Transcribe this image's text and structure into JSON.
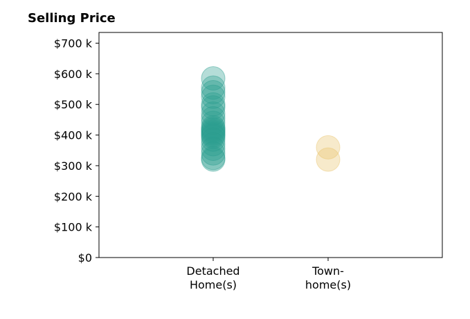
{
  "chart_data": {
    "type": "scatter",
    "title": "Selling Price",
    "categories": [
      "Detached\nHome(s)",
      "Town-\nhome(s)"
    ],
    "y_tick_labels": [
      "$0",
      "$100 k",
      "$200 k",
      "$300 k",
      "$400 k",
      "$500 k",
      "$600 k",
      "$700 k"
    ],
    "y_tick_values": [
      0,
      100000,
      200000,
      300000,
      400000,
      500000,
      600000,
      700000
    ],
    "ylim": [
      0,
      735000
    ],
    "series": [
      {
        "category": "Detached\nHome(s)",
        "color": "#2a9d8f",
        "values": [
          585000,
          555000,
          540000,
          525000,
          500000,
          490000,
          470000,
          455000,
          440000,
          425000,
          420000,
          415000,
          410000,
          405000,
          400000,
          395000,
          385000,
          370000,
          355000,
          340000,
          325000,
          320000
        ]
      },
      {
        "category": "Town-\nhome(s)",
        "color": "#e9c46a",
        "values": [
          360000,
          320000
        ]
      }
    ],
    "grid": false
  }
}
